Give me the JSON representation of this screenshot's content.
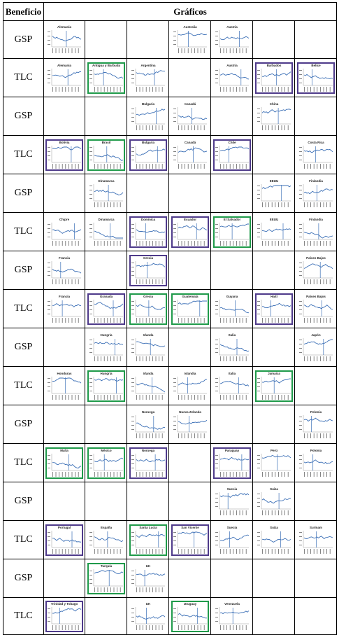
{
  "headers": {
    "beneficio": "Beneficio",
    "graficos": "Gráficos"
  },
  "rows": [
    {
      "label": "GSP",
      "cells": [
        {
          "t": "Alemania",
          "b": "none"
        },
        {
          "t": "",
          "b": "none"
        },
        {
          "t": "",
          "b": "none"
        },
        {
          "t": "Australia",
          "b": "none"
        },
        {
          "t": "Austria",
          "b": "none"
        },
        {
          "t": "",
          "b": "none"
        },
        {
          "t": "",
          "b": "none"
        }
      ]
    },
    {
      "label": "TLC",
      "cells": [
        {
          "t": "Alemania",
          "b": "none"
        },
        {
          "t": "Antigua y Barbuda",
          "b": "green"
        },
        {
          "t": "Argentina",
          "b": "none"
        },
        {
          "t": "",
          "b": "none"
        },
        {
          "t": "Austria",
          "b": "none"
        },
        {
          "t": "Barbados",
          "b": "purple"
        },
        {
          "t": "Belice",
          "b": "purple"
        }
      ]
    },
    {
      "label": "GSP",
      "cells": [
        {
          "t": "",
          "b": "none"
        },
        {
          "t": "",
          "b": "none"
        },
        {
          "t": "Bulgaria",
          "b": "none"
        },
        {
          "t": "Canadá",
          "b": "none"
        },
        {
          "t": "",
          "b": "none"
        },
        {
          "t": "China",
          "b": "none"
        },
        {
          "t": "",
          "b": "none"
        }
      ]
    },
    {
      "label": "TLC",
      "cells": [
        {
          "t": "Bolivia",
          "b": "purple"
        },
        {
          "t": "Brasil",
          "b": "green"
        },
        {
          "t": "Bulgaria",
          "b": "purple"
        },
        {
          "t": "Canadá",
          "b": "none"
        },
        {
          "t": "Chile",
          "b": "purple"
        },
        {
          "t": "",
          "b": "none"
        },
        {
          "t": "Costa Rica",
          "b": "none"
        }
      ]
    },
    {
      "label": "GSP",
      "cells": [
        {
          "t": "",
          "b": "none"
        },
        {
          "t": "Dinamarca",
          "b": "none"
        },
        {
          "t": "",
          "b": "none"
        },
        {
          "t": "",
          "b": "none"
        },
        {
          "t": "",
          "b": "none"
        },
        {
          "t": "EEUU",
          "b": "none"
        },
        {
          "t": "Finlandia",
          "b": "none"
        }
      ]
    },
    {
      "label": "TLC",
      "cells": [
        {
          "t": "Chipre",
          "b": "none"
        },
        {
          "t": "Dinamarca",
          "b": "none"
        },
        {
          "t": "Dominica",
          "b": "purple"
        },
        {
          "t": "Ecuador",
          "b": "purple"
        },
        {
          "t": "El Salvador",
          "b": "green"
        },
        {
          "t": "EEUU",
          "b": "none"
        },
        {
          "t": "Finlandia",
          "b": "none"
        }
      ]
    },
    {
      "label": "GSP",
      "cells": [
        {
          "t": "Francia",
          "b": "none"
        },
        {
          "t": "",
          "b": "none"
        },
        {
          "t": "Grecia",
          "b": "purple"
        },
        {
          "t": "",
          "b": "none"
        },
        {
          "t": "",
          "b": "none"
        },
        {
          "t": "",
          "b": "none"
        },
        {
          "t": "Países Bajos",
          "b": "none"
        }
      ]
    },
    {
      "label": "TLC",
      "cells": [
        {
          "t": "Francia",
          "b": "none"
        },
        {
          "t": "Granada",
          "b": "purple"
        },
        {
          "t": "Grecia",
          "b": "green"
        },
        {
          "t": "Guatemala",
          "b": "green"
        },
        {
          "t": "Guyana",
          "b": "none"
        },
        {
          "t": "Haití",
          "b": "purple"
        },
        {
          "t": "Países Bajos",
          "b": "none"
        }
      ]
    },
    {
      "label": "GSP",
      "cells": [
        {
          "t": "",
          "b": "none"
        },
        {
          "t": "Hungría",
          "b": "none"
        },
        {
          "t": "Irlanda",
          "b": "none"
        },
        {
          "t": "",
          "b": "none"
        },
        {
          "t": "Italia",
          "b": "none"
        },
        {
          "t": "",
          "b": "none"
        },
        {
          "t": "Japón",
          "b": "none"
        }
      ]
    },
    {
      "label": "TLC",
      "cells": [
        {
          "t": "Honduras",
          "b": "none"
        },
        {
          "t": "Hungría",
          "b": "green"
        },
        {
          "t": "Irlanda",
          "b": "none"
        },
        {
          "t": "Islandia",
          "b": "none"
        },
        {
          "t": "Italia",
          "b": "none"
        },
        {
          "t": "Jamaica",
          "b": "green"
        },
        {
          "t": "",
          "b": "none"
        }
      ]
    },
    {
      "label": "GSP",
      "cells": [
        {
          "t": "",
          "b": "none"
        },
        {
          "t": "",
          "b": "none"
        },
        {
          "t": "Noruega",
          "b": "none"
        },
        {
          "t": "Nueva Zelanda",
          "b": "none"
        },
        {
          "t": "",
          "b": "none"
        },
        {
          "t": "",
          "b": "none"
        },
        {
          "t": "Polonia",
          "b": "none"
        }
      ]
    },
    {
      "label": "TLC",
      "cells": [
        {
          "t": "Malta",
          "b": "green"
        },
        {
          "t": "México",
          "b": "green"
        },
        {
          "t": "Noruega",
          "b": "purple"
        },
        {
          "t": "",
          "b": "none"
        },
        {
          "t": "Paraguay",
          "b": "purple"
        },
        {
          "t": "Perú",
          "b": "none"
        },
        {
          "t": "Polonia",
          "b": "none"
        }
      ]
    },
    {
      "label": "GSP",
      "cells": [
        {
          "t": "",
          "b": "none"
        },
        {
          "t": "",
          "b": "none"
        },
        {
          "t": "",
          "b": "none"
        },
        {
          "t": "",
          "b": "none"
        },
        {
          "t": "Suecia",
          "b": "none"
        },
        {
          "t": "Suiza",
          "b": "none"
        },
        {
          "t": "",
          "b": "none"
        }
      ]
    },
    {
      "label": "TLC",
      "cells": [
        {
          "t": "Portugal",
          "b": "purple"
        },
        {
          "t": "España",
          "b": "none"
        },
        {
          "t": "Santa Lucía",
          "b": "green"
        },
        {
          "t": "San Vicente",
          "b": "purple"
        },
        {
          "t": "Suecia",
          "b": "none"
        },
        {
          "t": "Suiza",
          "b": "none"
        },
        {
          "t": "Surinam",
          "b": "none"
        }
      ]
    },
    {
      "label": "GSP",
      "cells": [
        {
          "t": "",
          "b": "none"
        },
        {
          "t": "Turquía",
          "b": "green"
        },
        {
          "t": "UK",
          "b": "none"
        },
        {
          "t": "",
          "b": "none"
        },
        {
          "t": "",
          "b": "none"
        },
        {
          "t": "",
          "b": "none"
        },
        {
          "t": "",
          "b": "none"
        }
      ]
    },
    {
      "label": "TLC",
      "cells": [
        {
          "t": "Trinidad y Tobago",
          "b": "purple"
        },
        {
          "t": "",
          "b": "none"
        },
        {
          "t": "UK",
          "b": "none"
        },
        {
          "t": "Uruguay",
          "b": "green"
        },
        {
          "t": "Venezuela",
          "b": "none"
        },
        {
          "t": "",
          "b": "none"
        },
        {
          "t": "",
          "b": "none"
        }
      ]
    }
  ],
  "colors": {
    "green": "#1f9a4a",
    "purple": "#4e3a8a",
    "series": "#3b6fb6"
  }
}
